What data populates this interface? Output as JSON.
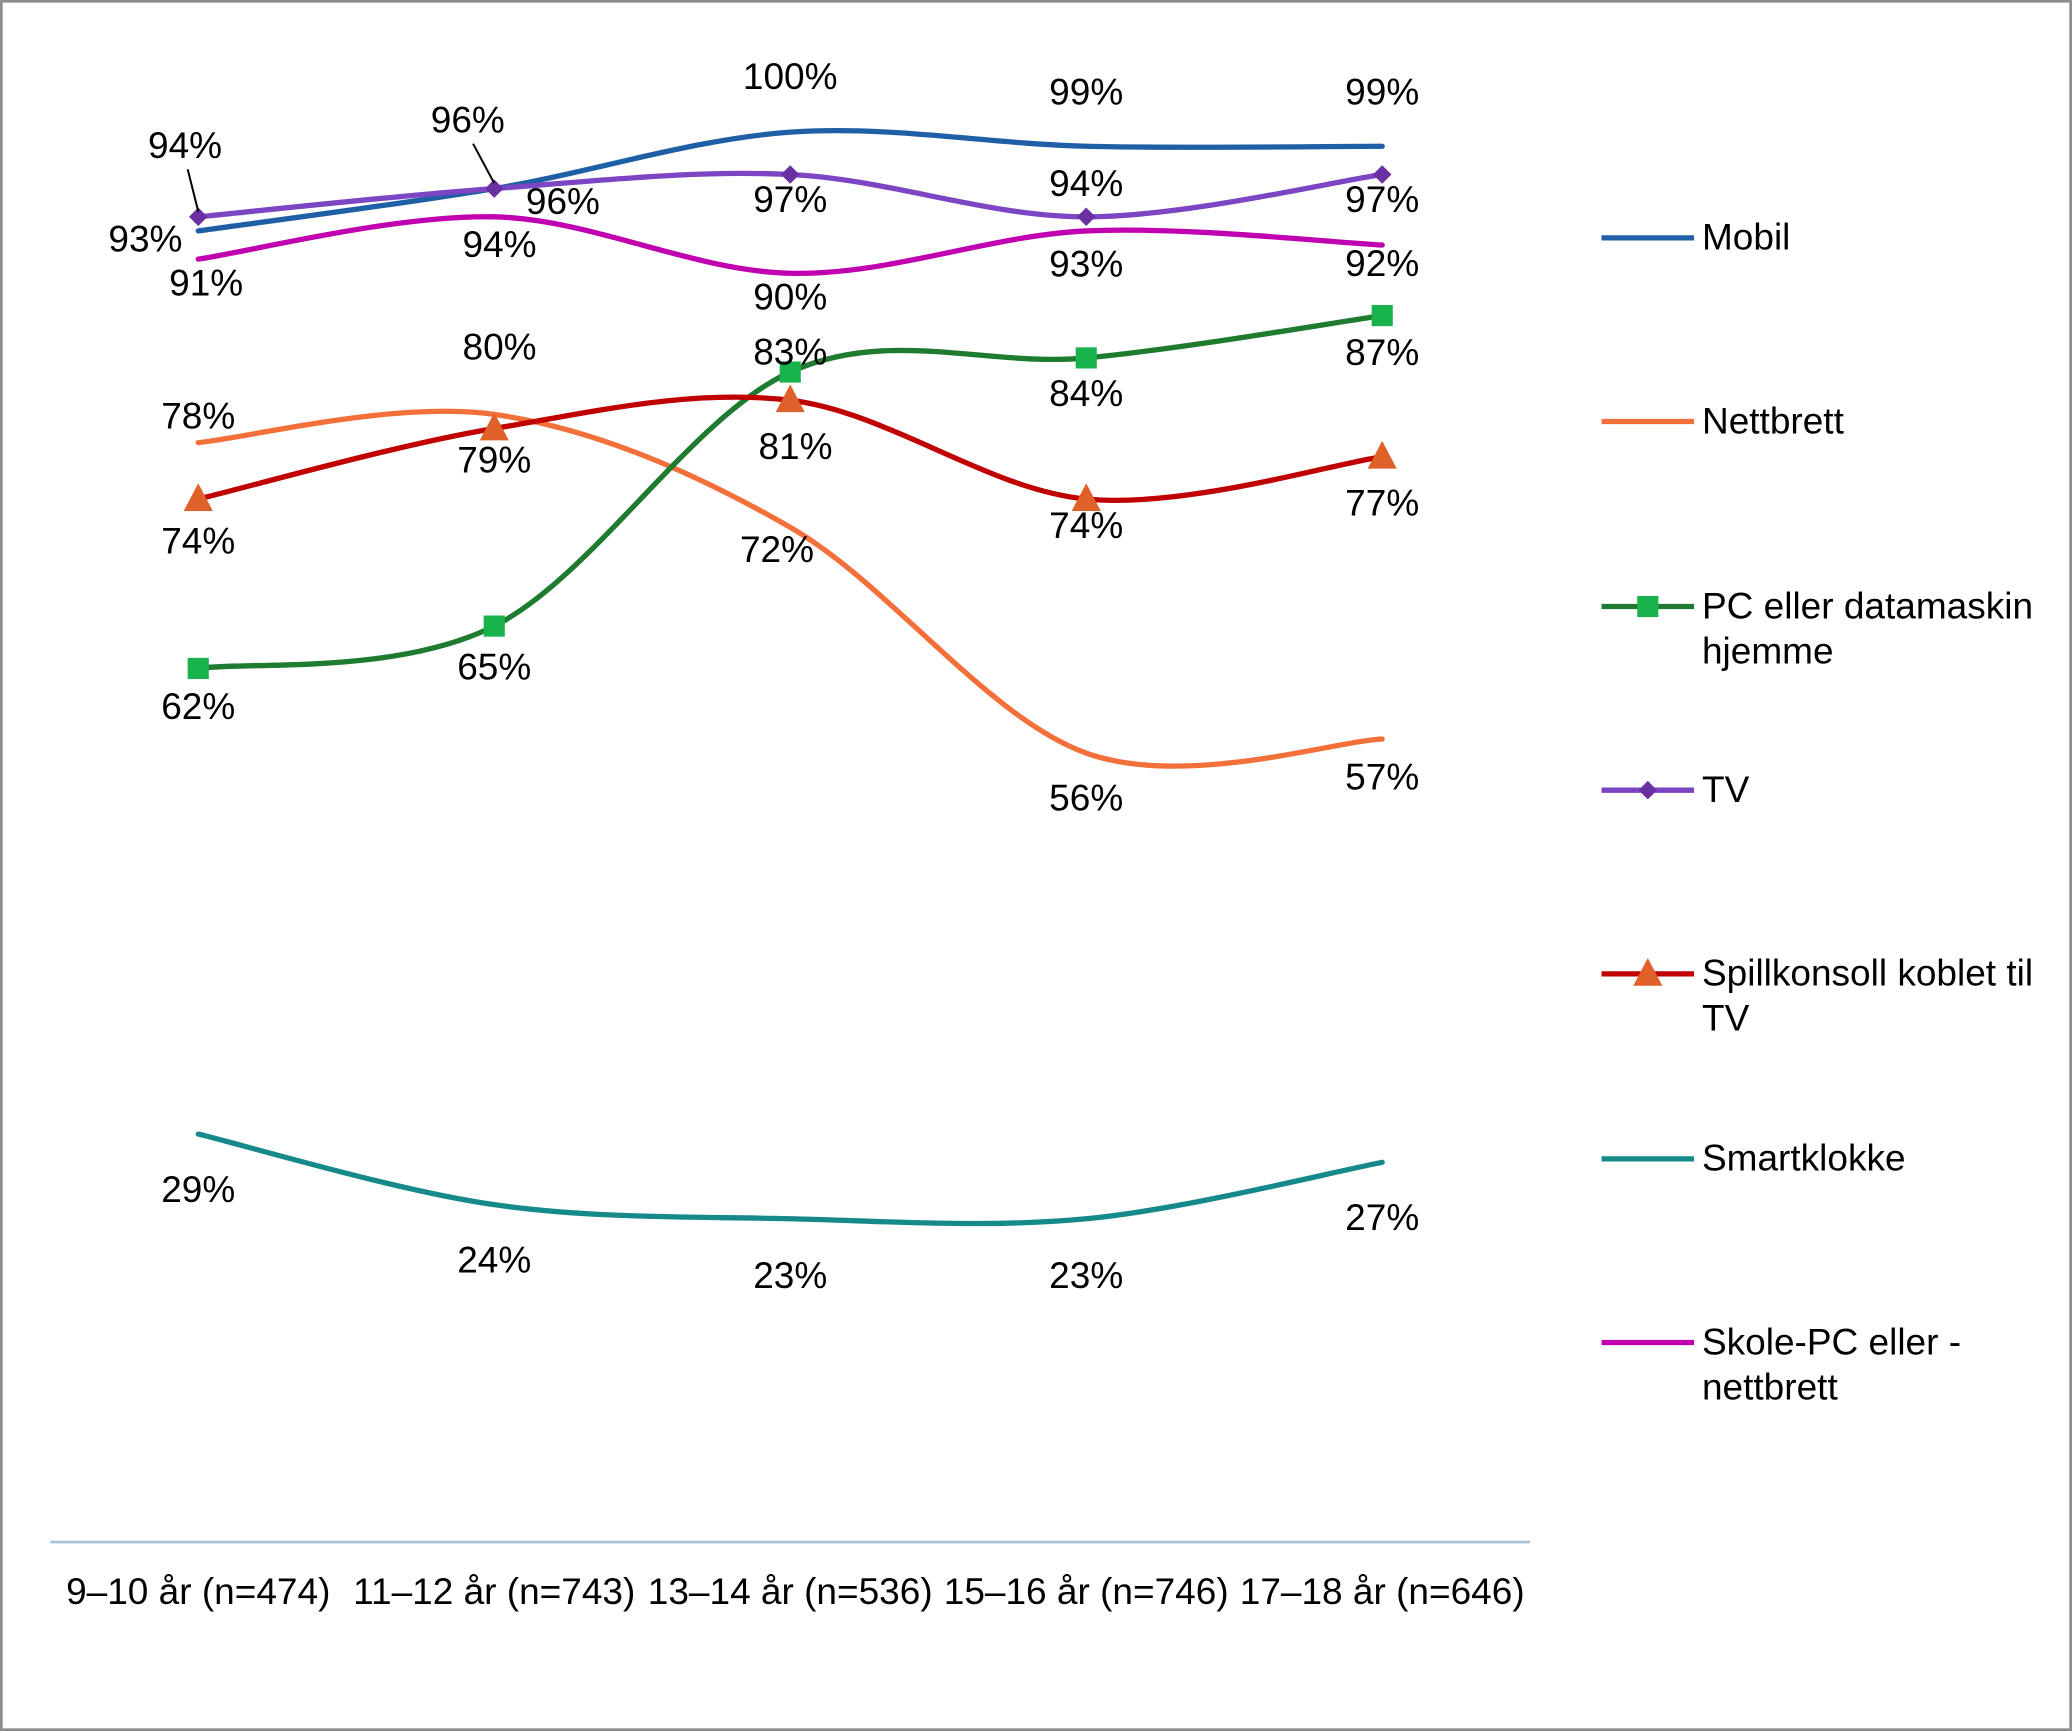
{
  "chart_data": {
    "type": "line",
    "smooth": true,
    "categories": [
      "9–10 år (n=474)",
      "11–12 år (n=743)",
      "13–14 år (n=536)",
      "15–16 år (n=746)",
      "17–18 år (n=646)"
    ],
    "ylim": [
      0,
      100
    ],
    "legend": "right",
    "series": [
      {
        "name": "Mobil",
        "color": "#1f5fa6",
        "marker": "none",
        "values": [
          93,
          96,
          100,
          99,
          99
        ],
        "value_labels": [
          "93%",
          "96%",
          "100%",
          "99%",
          "99%"
        ]
      },
      {
        "name": "Nettbrett",
        "color": "#f4703a",
        "marker": "none",
        "values": [
          78,
          80,
          72,
          56,
          57
        ],
        "value_labels": [
          "78%",
          "80%",
          "72%",
          "56%",
          "57%"
        ]
      },
      {
        "name": "PC eller datamaskin hjemme",
        "color": "#1e7b30",
        "marker": "square",
        "marker_color": "#19b34b",
        "values": [
          62,
          65,
          83,
          84,
          87
        ],
        "value_labels": [
          "62%",
          "65%",
          "83%",
          "84%",
          "87%"
        ]
      },
      {
        "name": "TV",
        "color": "#7b45c4",
        "marker": "diamond",
        "marker_color": "#6a2fa0",
        "values": [
          94,
          96,
          97,
          94,
          97
        ],
        "value_labels": [
          "94%",
          "96%",
          "97%",
          "94%",
          "97%"
        ]
      },
      {
        "name": "Spillkonsoll koblet til TV",
        "color": "#c00000",
        "marker": "triangle",
        "marker_color": "#e0602a",
        "values": [
          74,
          79,
          81,
          74,
          77
        ],
        "value_labels": [
          "74%",
          "79%",
          "81%",
          "74%",
          "77%"
        ]
      },
      {
        "name": "Smartklokke",
        "color": "#168a8a",
        "marker": "none",
        "values": [
          29,
          24,
          23,
          23,
          27
        ],
        "value_labels": [
          "29%",
          "24%",
          "23%",
          "23%",
          "27%"
        ]
      },
      {
        "name": "Skole-PC eller -nettbrett",
        "color": "#c000b0",
        "marker": "none",
        "values": [
          91,
          94,
          90,
          93,
          92
        ],
        "value_labels": [
          "91%",
          "94%",
          "90%",
          "93%",
          "92%"
        ]
      }
    ]
  }
}
